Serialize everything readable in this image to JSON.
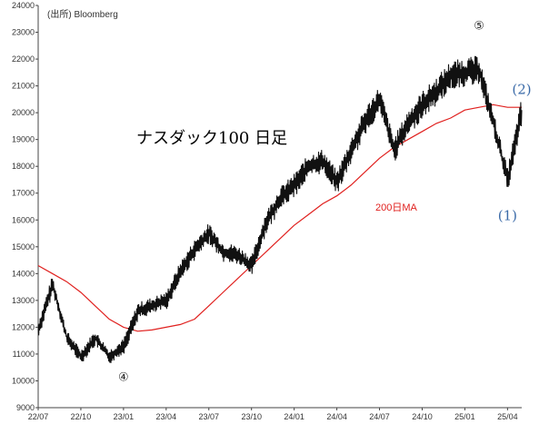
{
  "chart_data": {
    "type": "line",
    "title": "ナスダック100 日足",
    "source": "(出所) Bloomberg",
    "ylim": [
      9000,
      24000
    ],
    "y_ticks": [
      9000,
      10000,
      11000,
      12000,
      13000,
      14000,
      15000,
      16000,
      17000,
      18000,
      19000,
      20000,
      21000,
      22000,
      23000,
      24000
    ],
    "x_tick_labels": [
      "22/07",
      "22/10",
      "23/01",
      "23/04",
      "23/07",
      "23/10",
      "24/01",
      "24/04",
      "24/07",
      "24/10",
      "25/01",
      "25/04"
    ],
    "x": [
      "22/07",
      "22/08",
      "22/09",
      "22/10",
      "22/11",
      "22/12",
      "23/01",
      "23/02",
      "23/03",
      "23/04",
      "23/05",
      "23/06",
      "23/07",
      "23/08",
      "23/09",
      "23/10",
      "23/11",
      "23/12",
      "24/01",
      "24/02",
      "24/03",
      "24/04",
      "24/05",
      "24/06",
      "24/07",
      "24/08",
      "24/09",
      "24/10",
      "24/11",
      "24/12",
      "25/01",
      "25/02",
      "25/03",
      "25/04",
      "25/05"
    ],
    "series": [
      {
        "name": "",
        "color": "#111111",
        "values": [
          11900,
          13600,
          11600,
          10900,
          11600,
          10900,
          11300,
          12600,
          12800,
          13000,
          14100,
          14900,
          15500,
          14800,
          14700,
          14300,
          15900,
          16800,
          17300,
          18000,
          18200,
          17400,
          18600,
          19700,
          20500,
          18600,
          19600,
          20300,
          20800,
          21400,
          21500,
          21600,
          19600,
          17500,
          20100
        ]
      },
      {
        "name": "200日MA",
        "color": "#e0201e",
        "values": [
          14300,
          14000,
          13700,
          13300,
          12800,
          12300,
          12000,
          11850,
          11900,
          12000,
          12100,
          12300,
          12800,
          13300,
          13800,
          14300,
          14800,
          15300,
          15800,
          16200,
          16600,
          16900,
          17300,
          17800,
          18300,
          18700,
          19000,
          19300,
          19600,
          19800,
          20100,
          20200,
          20300,
          20200,
          20200
        ]
      }
    ],
    "annotations": [
      {
        "text": "④",
        "x": "23/01",
        "y": 10000
      },
      {
        "text": "⑤",
        "x": "25/02",
        "y": 23100
      },
      {
        "text": "(1)",
        "x": "25/04",
        "y": 16000
      },
      {
        "text": "(2)",
        "x": "25/05",
        "y": 20700
      },
      {
        "text": "200日MA",
        "x": "24/07",
        "y": 16500
      }
    ],
    "grid": false,
    "legend": "none"
  }
}
